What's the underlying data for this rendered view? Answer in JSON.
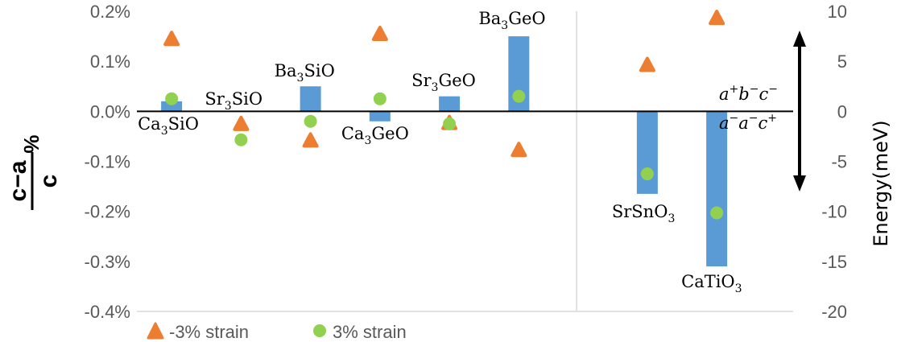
{
  "chart_data": {
    "type": "bar",
    "y_left": {
      "label_num": "c−a",
      "label_den": "c",
      "label_unit": "%",
      "lim": [
        -0.4,
        0.2
      ],
      "ticks": [
        "0.2%",
        "0.1%",
        "0.0%",
        "-0.1%",
        "-0.2%",
        "-0.3%",
        "-0.4%"
      ]
    },
    "y_right": {
      "label": "Energy(meV)",
      "lim": [
        -20,
        10
      ],
      "ticks": [
        "10",
        "5",
        "0",
        "-5",
        "-10",
        "-15",
        "-20"
      ]
    },
    "categories": [
      {
        "base": "Ca",
        "sub1": "3",
        "rest": "SiO",
        "sub2": ""
      },
      {
        "base": "Sr",
        "sub1": "3",
        "rest": "SiO",
        "sub2": ""
      },
      {
        "base": "Ba",
        "sub1": "3",
        "rest": "SiO",
        "sub2": ""
      },
      {
        "base": "Ca",
        "sub1": "3",
        "rest": "GeO",
        "sub2": ""
      },
      {
        "base": "Sr",
        "sub1": "3",
        "rest": "GeO",
        "sub2": ""
      },
      {
        "base": "Ba",
        "sub1": "3",
        "rest": "GeO",
        "sub2": ""
      },
      {
        "base": "SrSnO",
        "sub1": "",
        "rest": "",
        "sub2": "3"
      },
      {
        "base": "CaTiO",
        "sub1": "",
        "rest": "",
        "sub2": "3"
      }
    ],
    "bar_values_percent": [
      0.02,
      0.0,
      0.05,
      -0.02,
      0.03,
      0.15,
      -0.165,
      -0.31
    ],
    "series": [
      {
        "name": "-3% strain",
        "marker": "triangle",
        "color": "#ED7D31",
        "values": [
          0.145,
          -0.025,
          -0.058,
          0.155,
          -0.023,
          -0.077,
          0.093,
          0.187
        ]
      },
      {
        "name": "3% strain",
        "marker": "circle",
        "color": "#92D050",
        "values": [
          0.025,
          -0.057,
          -0.02,
          0.025,
          -0.025,
          0.03,
          -0.125,
          -0.203
        ]
      }
    ],
    "annotations": {
      "upper_phase": {
        "a": "a",
        "a_sup": "+",
        "b": "b",
        "b_sup": "−",
        "c": "c",
        "c_sup": "−"
      },
      "lower_phase": {
        "a": "a",
        "a_sup": "−",
        "b": "a",
        "b_sup": "−",
        "c": "c",
        "c_sup": "+"
      }
    },
    "colors": {
      "bar": "#5B9BD5",
      "grid_divider": "#D9D9D9",
      "axis": "#000000"
    }
  }
}
